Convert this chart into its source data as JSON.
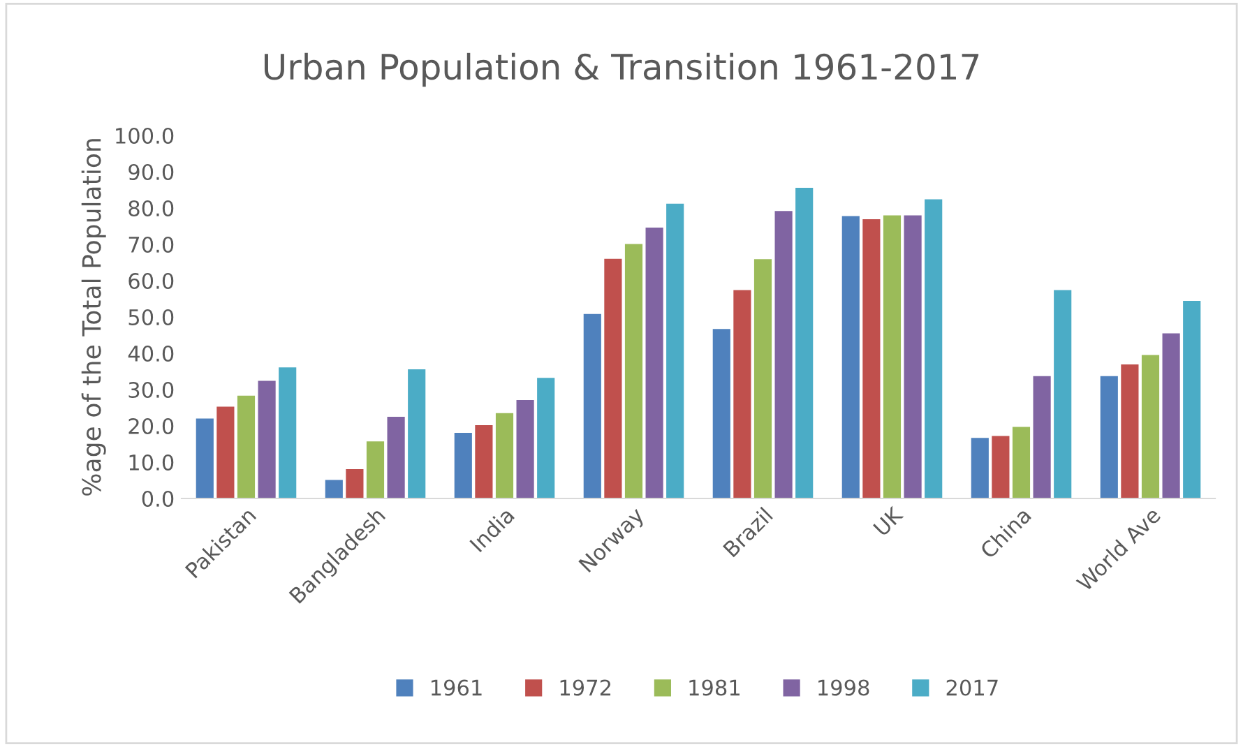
{
  "chart_data": {
    "type": "bar",
    "title": "Urban Population & Transition 1961-2017",
    "ylabel": "%age of the Total Population",
    "categories": [
      "Pakistan",
      "Bangladesh",
      "India",
      "Norway",
      "Brazil",
      "UK",
      "China",
      "World Ave"
    ],
    "series": [
      {
        "name": "1961",
        "color": "#4f81bd",
        "values": [
          22.0,
          5.1,
          18.1,
          50.8,
          46.7,
          77.8,
          16.7,
          33.7
        ]
      },
      {
        "name": "1972",
        "color": "#c0504d",
        "values": [
          25.3,
          8.1,
          20.2,
          66.0,
          57.4,
          76.9,
          17.2,
          36.9
        ]
      },
      {
        "name": "1981",
        "color": "#9bbb59",
        "values": [
          28.3,
          15.7,
          23.5,
          70.1,
          65.9,
          78.0,
          19.7,
          39.5
        ]
      },
      {
        "name": "1998",
        "color": "#8064a2",
        "values": [
          32.4,
          22.5,
          27.1,
          74.6,
          79.2,
          78.0,
          33.7,
          45.5
        ]
      },
      {
        "name": "2017",
        "color": "#4bacc6",
        "values": [
          36.1,
          35.6,
          33.2,
          81.2,
          85.6,
          82.4,
          57.4,
          54.4
        ]
      }
    ],
    "ylim": [
      0,
      100
    ],
    "yticks": [
      {
        "value": 0,
        "label": "0.0"
      },
      {
        "value": 10,
        "label": "10.0"
      },
      {
        "value": 20,
        "label": "20.0"
      },
      {
        "value": 30,
        "label": "30.0"
      },
      {
        "value": 40,
        "label": "40.0"
      },
      {
        "value": 50,
        "label": "50.0"
      },
      {
        "value": 60,
        "label": "60.0"
      },
      {
        "value": 70,
        "label": "70.0"
      },
      {
        "value": 80,
        "label": "80.0"
      },
      {
        "value": 90,
        "label": "90.0"
      },
      {
        "value": 100,
        "label": "100.0"
      }
    ],
    "legend": "bottom"
  }
}
